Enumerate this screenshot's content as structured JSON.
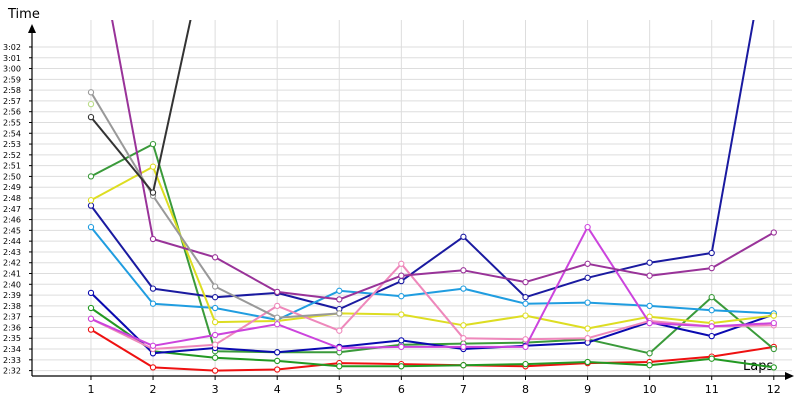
{
  "chart_data": {
    "type": "line",
    "xlabel": "Laps",
    "ylabel": "Time",
    "x": [
      1,
      2,
      3,
      4,
      5,
      6,
      7,
      8,
      9,
      10,
      11,
      12
    ],
    "xlim": [
      0.05,
      12.1
    ],
    "ylim": [
      151.5,
      184.5
    ],
    "y_ticks": [
      {
        "label": "2:32",
        "value": 152
      },
      {
        "label": "2:33",
        "value": 153
      },
      {
        "label": "2:34",
        "value": 154
      },
      {
        "label": "2:35",
        "value": 155
      },
      {
        "label": "2:36",
        "value": 156
      },
      {
        "label": "2:37",
        "value": 157
      },
      {
        "label": "2:38",
        "value": 158
      },
      {
        "label": "2:39",
        "value": 159
      },
      {
        "label": "2:40",
        "value": 160
      },
      {
        "label": "2:41",
        "value": 161
      },
      {
        "label": "2:42",
        "value": 162
      },
      {
        "label": "2:43",
        "value": 163
      },
      {
        "label": "2:44",
        "value": 164
      },
      {
        "label": "2:45",
        "value": 165
      },
      {
        "label": "2:46",
        "value": 166
      },
      {
        "label": "2:47",
        "value": 167
      },
      {
        "label": "2:48",
        "value": 168
      },
      {
        "label": "2:49",
        "value": 169
      },
      {
        "label": "2:50",
        "value": 170
      },
      {
        "label": "2:51",
        "value": 171
      },
      {
        "label": "2:52",
        "value": 172
      },
      {
        "label": "2:53",
        "value": 173
      },
      {
        "label": "2:54",
        "value": 174
      },
      {
        "label": "2:55",
        "value": 175
      },
      {
        "label": "2:56",
        "value": 176
      },
      {
        "label": "2:57",
        "value": 177
      },
      {
        "label": "2:58",
        "value": 178
      },
      {
        "label": "2:59",
        "value": 179
      },
      {
        "label": "3:00",
        "value": 180
      },
      {
        "label": "3:01",
        "value": 181
      },
      {
        "label": "3:02",
        "value": 182
      }
    ],
    "grid": true,
    "series": [
      {
        "color": "#ee1111",
        "values": [
          155.8,
          152.3,
          152.0,
          152.1,
          152.7,
          152.6,
          152.5,
          152.4,
          152.7,
          152.8,
          153.3,
          154.2
        ]
      },
      {
        "color": "#229922",
        "values": [
          157.8,
          153.8,
          153.2,
          152.9,
          152.4,
          152.4,
          152.5,
          152.6,
          152.8,
          152.5,
          153.1,
          152.3
        ]
      },
      {
        "color": "#3a9a3a",
        "values": [
          170.0,
          173.0,
          153.8,
          153.7,
          153.7,
          154.4,
          154.5,
          154.6,
          154.9,
          153.6,
          158.8,
          154.0
        ]
      },
      {
        "color": "#0a0ab0",
        "values": [
          159.2,
          153.6,
          154.1,
          153.7,
          154.2,
          154.8,
          154.0,
          154.3,
          154.6,
          156.5,
          155.2,
          157.2
        ]
      },
      {
        "color": "#1a1aa0",
        "values": [
          167.3,
          159.6,
          158.8,
          159.2,
          157.7,
          160.3,
          164.4,
          158.8,
          160.6,
          162.0,
          162.9,
          195.0
        ]
      },
      {
        "color": "#209de0",
        "values": [
          165.3,
          158.2,
          157.8,
          156.7,
          159.4,
          158.9,
          159.6,
          158.2,
          158.3,
          158.0,
          157.6,
          157.3
        ]
      },
      {
        "color": "#dddd22",
        "values": [
          167.8,
          170.9,
          156.5,
          156.6,
          157.3,
          157.2,
          156.2,
          157.1,
          155.9,
          157.0,
          156.4,
          157.1
        ]
      },
      {
        "color": "#ee88bb",
        "values": [
          156.8,
          154.0,
          154.4,
          158.0,
          155.7,
          161.9,
          155.0,
          154.9,
          155.0,
          156.6,
          156.1,
          156.2
        ]
      },
      {
        "color": "#cc44dd",
        "values": [
          156.8,
          154.3,
          155.3,
          156.3,
          154.1,
          154.2,
          154.2,
          154.2,
          165.3,
          156.4,
          156.1,
          156.4
        ]
      },
      {
        "color": "#993399",
        "values": [
          195.0,
          164.2,
          162.5,
          159.3,
          158.6,
          160.8,
          161.3,
          160.2,
          161.9,
          160.8,
          161.5,
          164.8
        ]
      },
      {
        "color": "#999999",
        "values": [
          177.8,
          168.2,
          159.8,
          156.9,
          157.3,
          null,
          null,
          null,
          null,
          null,
          null,
          null
        ]
      },
      {
        "color": "#333333",
        "values": [
          175.5,
          168.5,
          195.0,
          null,
          null,
          null,
          null,
          null,
          null,
          null,
          null,
          null
        ]
      },
      {
        "color": "#bbdd88",
        "values": [
          176.7,
          null,
          null,
          null,
          null,
          null,
          null,
          null,
          null,
          null,
          null,
          null
        ]
      }
    ]
  }
}
